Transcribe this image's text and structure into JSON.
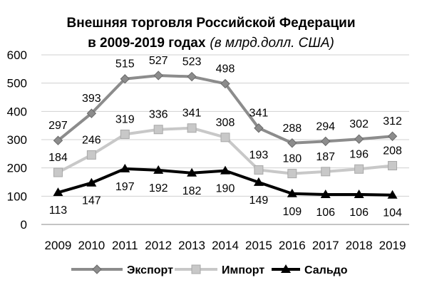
{
  "chart_data": {
    "type": "line",
    "title_line1": "Внешняя торговля Российской Федерации",
    "title_line2_bold": "в 2009-2019 годах",
    "title_line2_italic": "(в млрд.долл. США)",
    "categories": [
      "2009",
      "2010",
      "2011",
      "2012",
      "2013",
      "2014",
      "2015",
      "2016",
      "2017",
      "2018",
      "2019"
    ],
    "ylim": [
      0,
      600
    ],
    "yticks": [
      0,
      100,
      200,
      300,
      400,
      500,
      600
    ],
    "grid": true,
    "legend_position": "bottom",
    "series": [
      {
        "name": "Экспорт",
        "values": [
          297,
          393,
          515,
          527,
          523,
          498,
          341,
          288,
          294,
          302,
          312
        ],
        "color": "#8c8c8c",
        "marker": "diamond"
      },
      {
        "name": "Импорт",
        "values": [
          184,
          246,
          319,
          336,
          341,
          308,
          193,
          180,
          187,
          196,
          208
        ],
        "color": "#c8c8c8",
        "marker": "square"
      },
      {
        "name": "Сальдо",
        "values": [
          113,
          147,
          197,
          192,
          182,
          190,
          149,
          109,
          106,
          106,
          104
        ],
        "color": "#000000",
        "marker": "triangle"
      }
    ]
  }
}
